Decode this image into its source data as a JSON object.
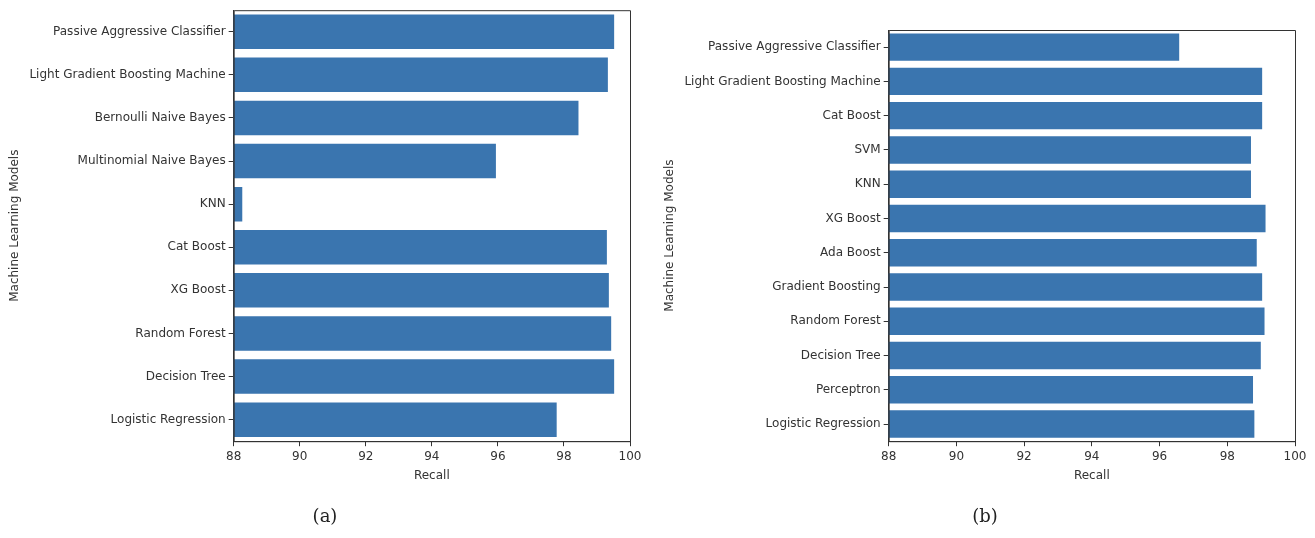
{
  "chart_data": [
    {
      "type": "bar",
      "orientation": "horizontal",
      "xlabel": "Recall",
      "ylabel": "Machine Learning Models",
      "annotations": [
        "(a)"
      ],
      "categories": [
        "Passive Aggressive Classifier",
        "Light Gradient Boosting Machine",
        "Bernoulli Naive Bayes",
        "Multinomial Naive Bayes",
        "KNN",
        "Cat Boost",
        "XG Boost",
        "Random Forest",
        "Decision Tree",
        "Logistic Regression"
      ],
      "values": [
        99.52,
        99.33,
        98.44,
        95.94,
        88.26,
        99.3,
        99.36,
        99.43,
        99.52,
        97.78
      ],
      "color": "#3a75af",
      "xlim": [
        88,
        100
      ],
      "xticks": [
        88,
        90,
        92,
        94,
        96,
        98,
        100
      ],
      "grid": false,
      "legend": false
    },
    {
      "type": "bar",
      "orientation": "horizontal",
      "xlabel": "Recall",
      "ylabel": "Machine Learning Models",
      "annotations": [
        "(b)"
      ],
      "categories": [
        "Passive Aggressive Classifier",
        "Light Gradient Boosting Machine",
        "Cat Boost",
        "SVM",
        "KNN",
        "XG Boost",
        "Ada Boost",
        "Gradient Boosting",
        "Random Forest",
        "Decision Tree",
        "Perceptron",
        "Logistic Regression"
      ],
      "values": [
        96.58,
        99.03,
        99.03,
        98.7,
        98.7,
        99.13,
        98.87,
        99.03,
        99.1,
        98.99,
        98.76,
        98.8
      ],
      "color": "#3a75af",
      "xlim": [
        88,
        100
      ],
      "xticks": [
        88,
        90,
        92,
        94,
        96,
        98,
        100
      ],
      "grid": false,
      "legend": false
    }
  ]
}
